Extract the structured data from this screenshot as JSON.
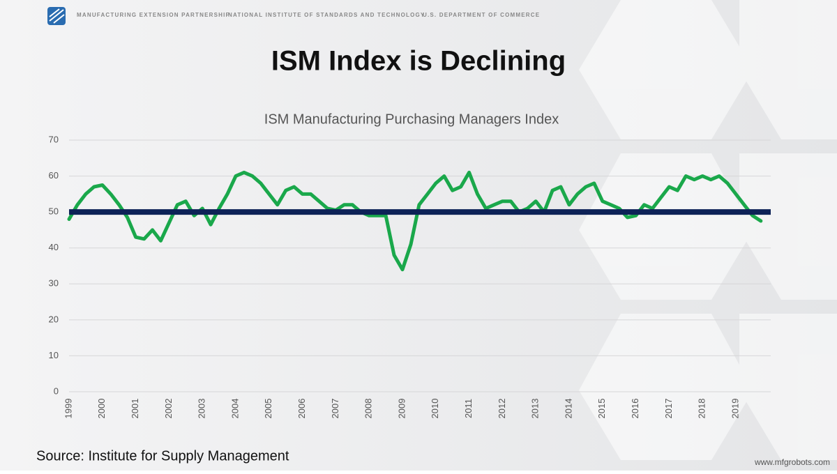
{
  "header": [
    "MANUFACTURING EXTENSION PARTNERSHIP",
    "NATIONAL INSTITUTE OF STANDARDS AND TECHNOLOGY",
    "U.S. DEPARTMENT OF COMMERCE"
  ],
  "slide_title": "ISM Index is Declining",
  "chart_data": {
    "type": "line",
    "title": "ISM Manufacturing Purchasing Managers Index",
    "categories": [
      "1999",
      null,
      null,
      null,
      "2000",
      null,
      null,
      null,
      "2001",
      null,
      null,
      null,
      "2002",
      null,
      null,
      null,
      "2003",
      null,
      null,
      null,
      "2004",
      null,
      null,
      null,
      "2005",
      null,
      null,
      null,
      "2006",
      null,
      null,
      null,
      "2007",
      null,
      null,
      null,
      "2008",
      null,
      null,
      null,
      "2009",
      null,
      null,
      null,
      "2010",
      null,
      null,
      null,
      "2011",
      null,
      null,
      null,
      "2012",
      null,
      null,
      null,
      "2013",
      null,
      null,
      null,
      "2014",
      null,
      null,
      null,
      "2015",
      null,
      null,
      null,
      "2016",
      null,
      null,
      null,
      "2017",
      null,
      null,
      null,
      "2018",
      null,
      null,
      null,
      "2019",
      null,
      null,
      null
    ],
    "series": [
      {
        "color": "#1aa84b",
        "values": [
          48,
          52,
          55,
          57,
          57.5,
          55,
          52,
          48.5,
          43,
          42.5,
          45,
          42,
          47,
          52,
          53,
          49,
          51,
          46.5,
          51,
          55,
          60,
          61,
          60,
          58,
          55,
          52,
          56,
          57,
          55,
          55,
          53,
          51,
          50.5,
          52,
          52,
          50,
          49,
          49,
          49,
          38,
          34,
          41,
          52,
          55,
          58,
          60,
          56,
          57,
          61,
          55,
          51,
          52,
          53,
          53,
          50,
          51,
          53,
          50,
          56,
          57,
          52,
          55,
          57,
          58,
          53,
          52,
          51,
          48.5,
          49,
          52,
          51,
          54,
          57,
          56,
          60,
          59,
          60,
          59,
          60,
          58,
          55,
          52,
          49,
          47.5
        ]
      }
    ],
    "reference_line": {
      "value": 50,
      "color": "#0d2257"
    },
    "ylim": [
      0,
      70
    ],
    "yticks": [
      0,
      10,
      20,
      30,
      40,
      50,
      60,
      70
    ],
    "grid": true
  },
  "source": "Source: Institute for Supply Management",
  "watermark": "www.mfgrobots.com"
}
